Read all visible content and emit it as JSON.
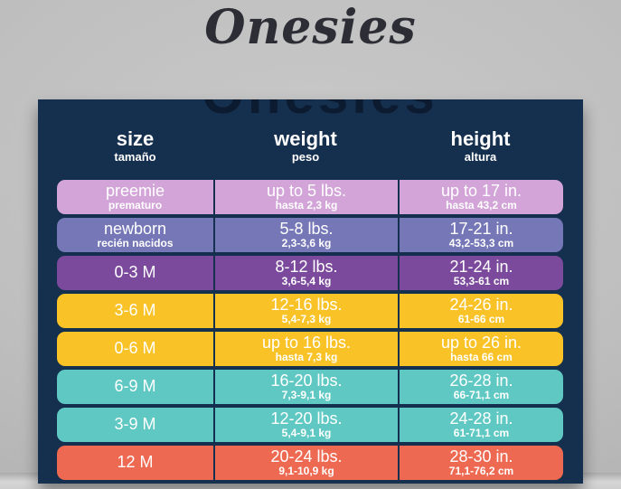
{
  "title": "Onesies",
  "ghost_title": "Onesies",
  "colors": {
    "background_gray": "#bfbfbf",
    "panel_navy": "#152f4e",
    "title_text": "#2d2d35",
    "header_text": "#ffffff",
    "row_text": "#ffffff",
    "row_lavender": "#d2a4d8",
    "row_slate_purple": "#7577b6",
    "row_purple": "#7c4a9c",
    "row_gold": "#f9c226",
    "row_teal": "#5fc8c3",
    "row_coral": "#ee6951"
  },
  "chart_data": {
    "type": "table",
    "title": "Onesies",
    "columns": [
      {
        "en": "size",
        "es": "tamaño"
      },
      {
        "en": "weight",
        "es": "peso"
      },
      {
        "en": "height",
        "es": "altura"
      }
    ],
    "rows": [
      {
        "color": "#d2a4d8",
        "size": {
          "main": "preemie",
          "sub": "prematuro"
        },
        "weight": {
          "main": "up to 5 lbs.",
          "sub": "hasta 2,3 kg"
        },
        "height": {
          "main": "up to 17 in.",
          "sub": "hasta 43,2 cm"
        }
      },
      {
        "color": "#7577b6",
        "size": {
          "main": "newborn",
          "sub": "recién nacidos"
        },
        "weight": {
          "main": "5-8 lbs.",
          "sub": "2,3-3,6 kg"
        },
        "height": {
          "main": "17-21 in.",
          "sub": "43,2-53,3 cm"
        }
      },
      {
        "color": "#7c4a9c",
        "size": {
          "main": "0-3 M",
          "sub": ""
        },
        "weight": {
          "main": "8-12 lbs.",
          "sub": "3,6-5,4 kg"
        },
        "height": {
          "main": "21-24 in.",
          "sub": "53,3-61 cm"
        }
      },
      {
        "color": "#f9c226",
        "size": {
          "main": "3-6 M",
          "sub": ""
        },
        "weight": {
          "main": "12-16 lbs.",
          "sub": "5,4-7,3 kg"
        },
        "height": {
          "main": "24-26 in.",
          "sub": "61-66 cm"
        }
      },
      {
        "color": "#f9c226",
        "size": {
          "main": "0-6 M",
          "sub": ""
        },
        "weight": {
          "main": "up to 16 lbs.",
          "sub": "hasta 7,3 kg"
        },
        "height": {
          "main": "up to 26 in.",
          "sub": "hasta 66 cm"
        }
      },
      {
        "color": "#5fc8c3",
        "size": {
          "main": "6-9 M",
          "sub": ""
        },
        "weight": {
          "main": "16-20 lbs.",
          "sub": "7,3-9,1 kg"
        },
        "height": {
          "main": "26-28 in.",
          "sub": "66-71,1 cm"
        }
      },
      {
        "color": "#5fc8c3",
        "size": {
          "main": "3-9 M",
          "sub": ""
        },
        "weight": {
          "main": "12-20 lbs.",
          "sub": "5,4-9,1 kg"
        },
        "height": {
          "main": "24-28 in.",
          "sub": "61-71,1 cm"
        }
      },
      {
        "color": "#ee6951",
        "size": {
          "main": "12 M",
          "sub": ""
        },
        "weight": {
          "main": "20-24 lbs.",
          "sub": "9,1-10,9 kg"
        },
        "height": {
          "main": "28-30 in.",
          "sub": "71,1-76,2 cm"
        }
      }
    ]
  }
}
